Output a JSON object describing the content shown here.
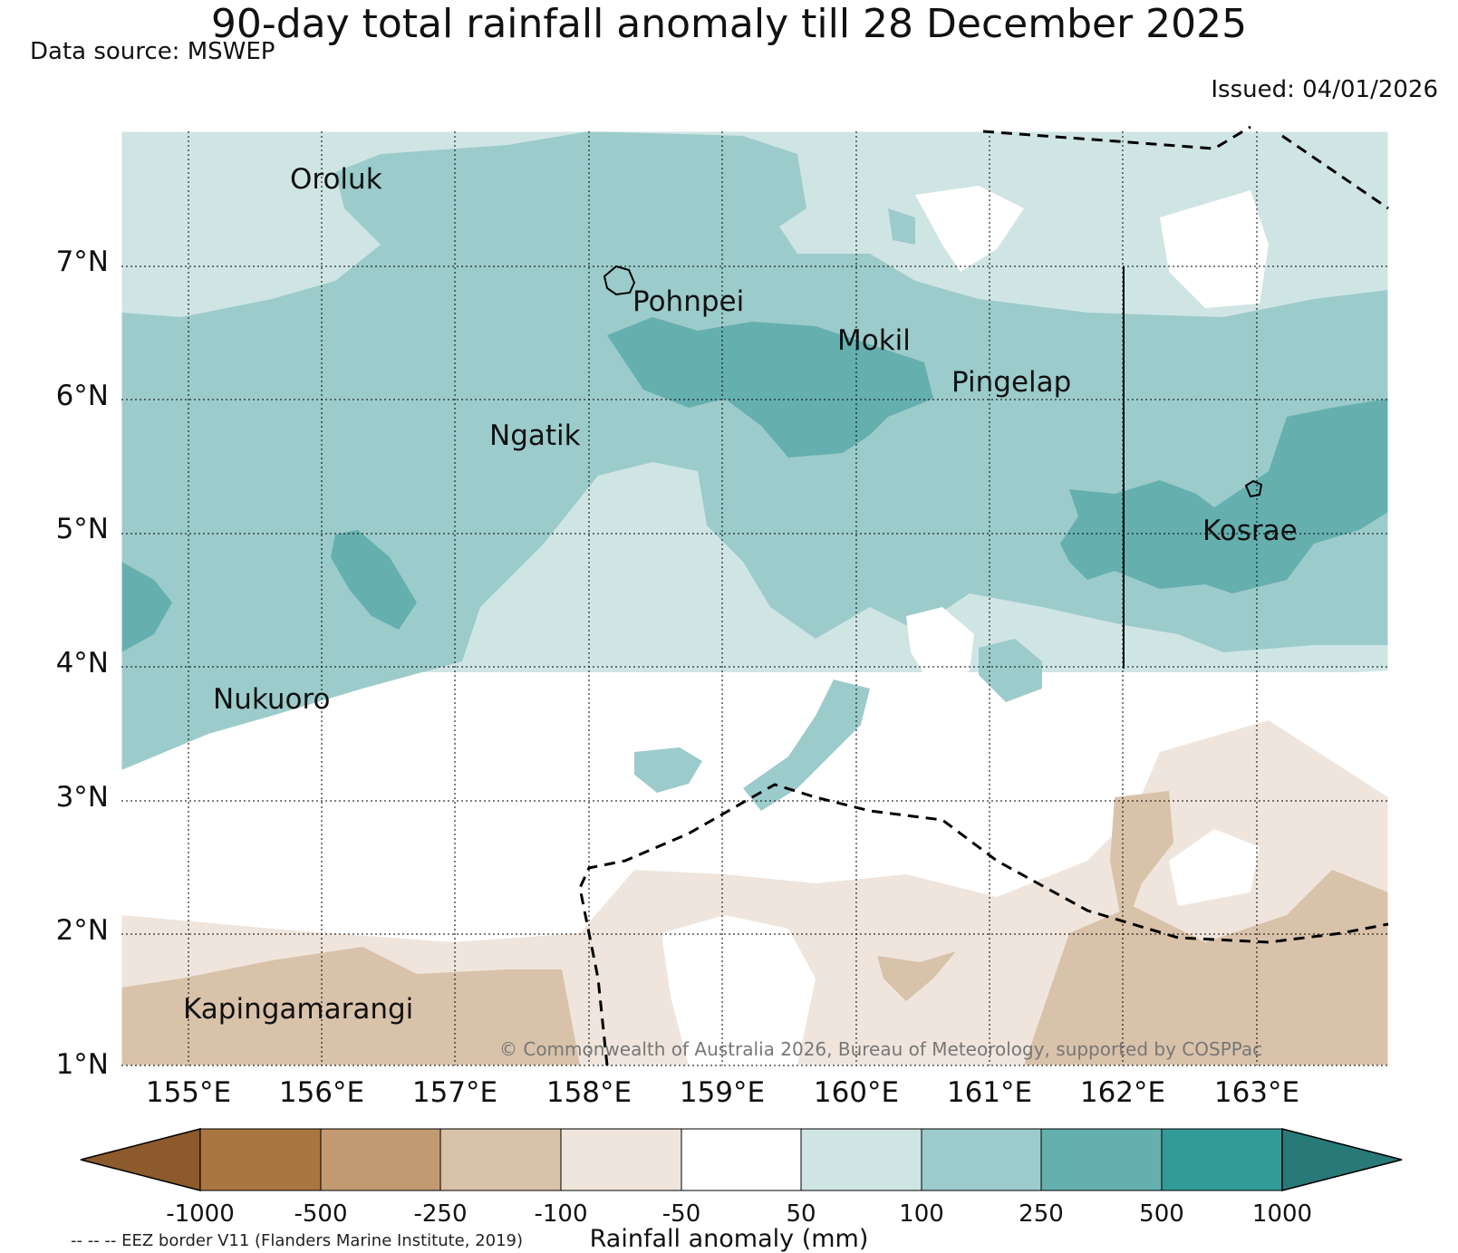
{
  "header": {
    "title": "90-day total rainfall anomaly till 28 December 2025",
    "source": "Data source: MSWEP",
    "issued": "Issued: 04/01/2026"
  },
  "map": {
    "lat_labels": [
      "7°N",
      "6°N",
      "5°N",
      "4°N",
      "3°N",
      "2°N",
      "1°N"
    ],
    "lon_labels": [
      "155°E",
      "156°E",
      "157°E",
      "158°E",
      "159°E",
      "160°E",
      "161°E",
      "162°E",
      "163°E"
    ],
    "places": [
      "Oroluk",
      "Pohnpei",
      "Mokil",
      "Pingelap",
      "Ngatik",
      "Kosrae",
      "Nukuoro",
      "Kapingamarangi"
    ],
    "copyright": "© Commonwealth of Australia 2026, Bureau of Meteorology, supported by COSPPac"
  },
  "colorbar": {
    "title": "Rainfall anomaly (mm)",
    "ticks": [
      "-1000",
      "-500",
      "-250",
      "-100",
      "-50",
      "50",
      "100",
      "250",
      "500",
      "1000"
    ],
    "colors": [
      "#8c5a2b",
      "#a97540",
      "#c29a72",
      "#d9c2aa",
      "#efe5dc",
      "#ffffff",
      "#cfe5e4",
      "#9ccbcb",
      "#65afaf",
      "#329b97",
      "#287a78"
    ],
    "eez_note": "-- -- -- EEZ border V11 (Flanders Marine Institute, 2019)"
  }
}
